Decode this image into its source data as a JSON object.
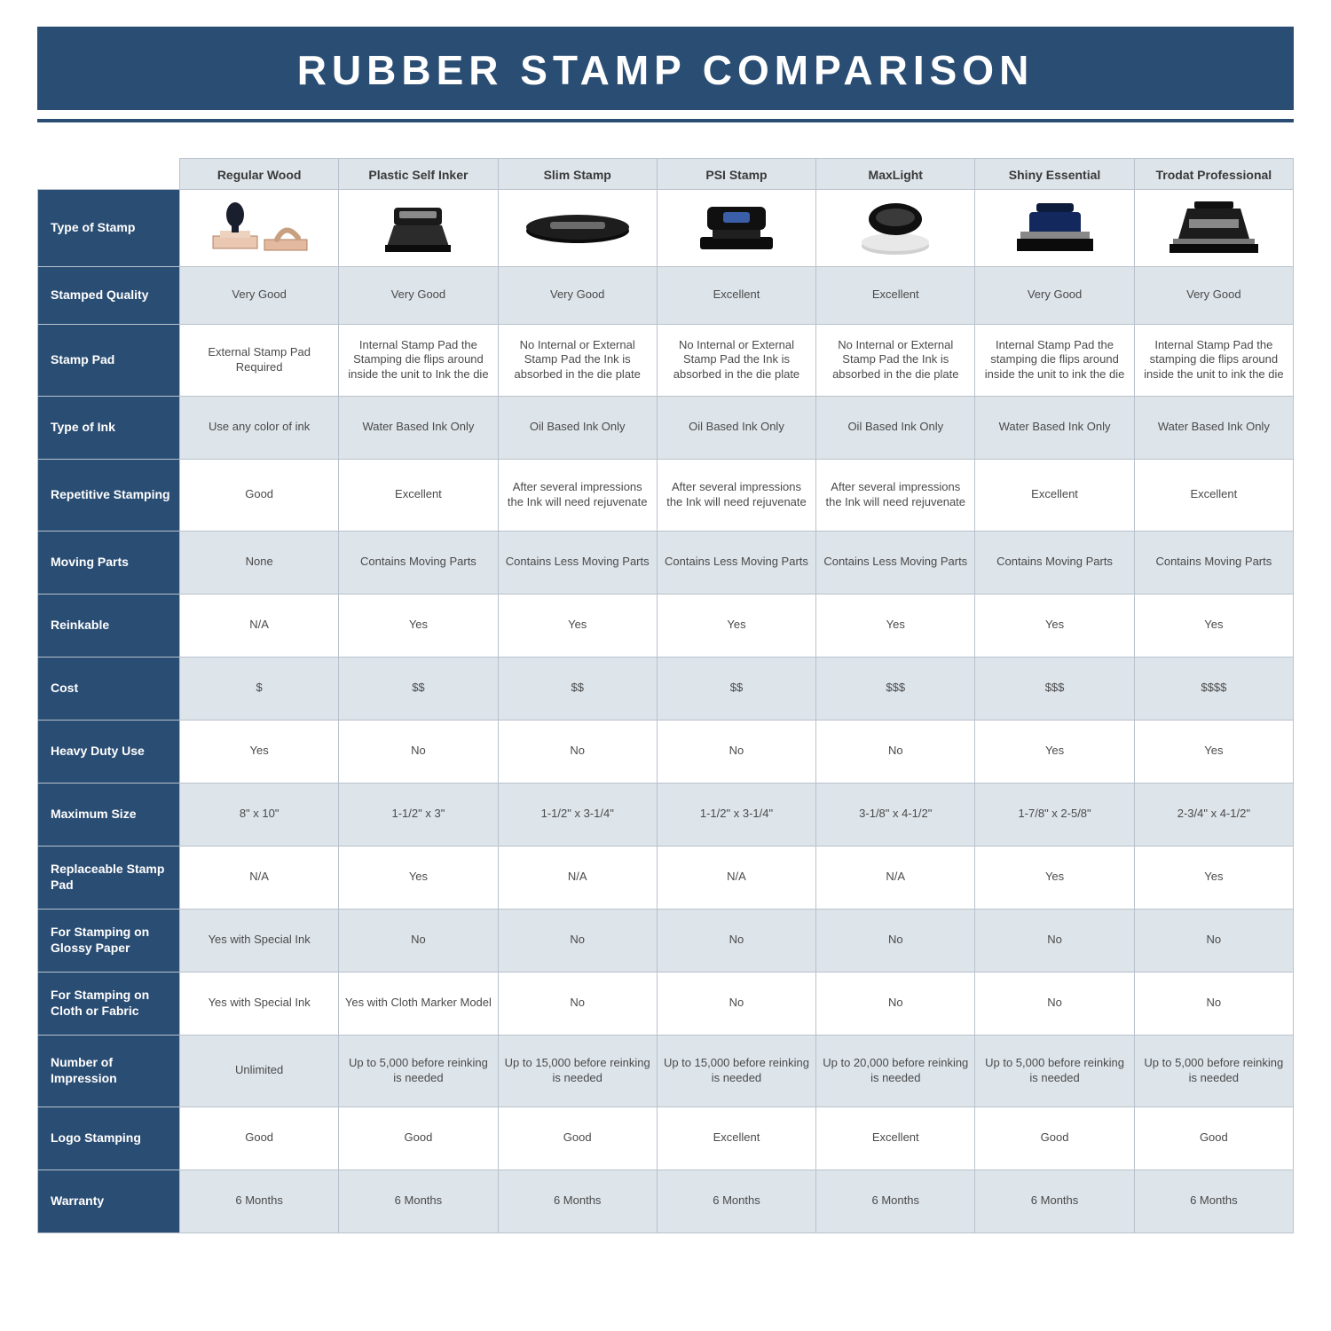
{
  "title": "RUBBER STAMP COMPARISON",
  "colors": {
    "header_bg": "#2a4d73",
    "header_text": "#ffffff",
    "shade_bg": "#dde4ea",
    "plain_bg": "#ffffff",
    "border": "#b9c2cc",
    "body_text": "#4a4a4a"
  },
  "columns": [
    "Regular Wood",
    "Plastic Self Inker",
    "Slim Stamp",
    "PSI Stamp",
    "MaxLight",
    "Shiny Essential",
    "Trodat Professional"
  ],
  "image_row_label": "Type of Stamp",
  "rows": [
    {
      "label": "Stamped Quality",
      "shade": true,
      "height": "short",
      "cells": [
        "Very Good",
        "Very Good",
        "Very Good",
        "Excellent",
        "Excellent",
        "Very Good",
        "Very Good"
      ]
    },
    {
      "label": "Stamp Pad",
      "shade": false,
      "height": "tall",
      "cells": [
        "External Stamp Pad Required",
        "Internal Stamp Pad the Stamping die flips around inside the unit to Ink the die",
        "No Internal or External Stamp Pad the Ink is absorbed in the die plate",
        "No Internal or External Stamp Pad the Ink is absorbed in the die plate",
        "No Internal or External Stamp Pad the Ink is absorbed in the die plate",
        "Internal Stamp Pad the stamping die flips around inside the unit to ink the die",
        "Internal Stamp Pad the stamping die flips around inside the unit to ink the die"
      ]
    },
    {
      "label": "Type of Ink",
      "shade": true,
      "height": "med",
      "cells": [
        "Use any color of ink",
        "Water Based Ink Only",
        "Oil Based Ink Only",
        "Oil Based Ink Only",
        "Oil Based Ink Only",
        "Water Based Ink Only",
        "Water Based Ink Only"
      ]
    },
    {
      "label": "Repetitive Stamping",
      "shade": false,
      "height": "tall",
      "cells": [
        "Good",
        "Excellent",
        "After several impressions the Ink will need rejuvenate",
        "After several impressions the Ink will need rejuvenate",
        "After several impressions the Ink will need rejuvenate",
        "Excellent",
        "Excellent"
      ]
    },
    {
      "label": "Moving Parts",
      "shade": true,
      "height": "med",
      "cells": [
        "None",
        "Contains Moving Parts",
        "Contains Less Moving Parts",
        "Contains Less Moving Parts",
        "Contains Less Moving Parts",
        "Contains Moving Parts",
        "Contains Moving Parts"
      ]
    },
    {
      "label": "Reinkable",
      "shade": false,
      "height": "med",
      "cells": [
        "N/A",
        "Yes",
        "Yes",
        "Yes",
        "Yes",
        "Yes",
        "Yes"
      ]
    },
    {
      "label": "Cost",
      "shade": true,
      "height": "med",
      "cells": [
        "$",
        "$$",
        "$$",
        "$$",
        "$$$",
        "$$$",
        "$$$$"
      ]
    },
    {
      "label": "Heavy Duty Use",
      "shade": false,
      "height": "med",
      "cells": [
        "Yes",
        "No",
        "No",
        "No",
        "No",
        "Yes",
        "Yes"
      ]
    },
    {
      "label": "Maximum Size",
      "shade": true,
      "height": "med",
      "cells": [
        "8\" x 10\"",
        "1-1/2\" x 3\"",
        "1-1/2\" x 3-1/4\"",
        "1-1/2\" x 3-1/4\"",
        "3-1/8\" x 4-1/2\"",
        "1-7/8\" x 2-5/8\"",
        "2-3/4\" x 4-1/2\""
      ]
    },
    {
      "label": "Replaceable Stamp Pad",
      "shade": false,
      "height": "med",
      "cells": [
        "N/A",
        "Yes",
        "N/A",
        "N/A",
        "N/A",
        "Yes",
        "Yes"
      ]
    },
    {
      "label": "For Stamping on Glossy Paper",
      "shade": true,
      "height": "med",
      "cells": [
        "Yes with Special Ink",
        "No",
        "No",
        "No",
        "No",
        "No",
        "No"
      ]
    },
    {
      "label": "For Stamping on Cloth or Fabric",
      "shade": false,
      "height": "med",
      "cells": [
        "Yes with Special Ink",
        "Yes with Cloth Marker Model",
        "No",
        "No",
        "No",
        "No",
        "No"
      ]
    },
    {
      "label": "Number of Impression",
      "shade": true,
      "height": "tall",
      "cells": [
        "Unlimited",
        "Up to 5,000 before reinking is needed",
        "Up to 15,000 before reinking is needed",
        "Up to 15,000 before reinking is needed",
        "Up to 20,000 before reinking is needed",
        "Up to 5,000 before reinking is needed",
        "Up to 5,000 before reinking is needed"
      ]
    },
    {
      "label": "Logo Stamping",
      "shade": false,
      "height": "med",
      "cells": [
        "Good",
        "Good",
        "Good",
        "Excellent",
        "Excellent",
        "Good",
        "Good"
      ]
    },
    {
      "label": "Warranty",
      "shade": true,
      "height": "med",
      "cells": [
        "6 Months",
        "6 Months",
        "6 Months",
        "6 Months",
        "6 Months",
        "6 Months",
        "6 Months"
      ]
    }
  ]
}
